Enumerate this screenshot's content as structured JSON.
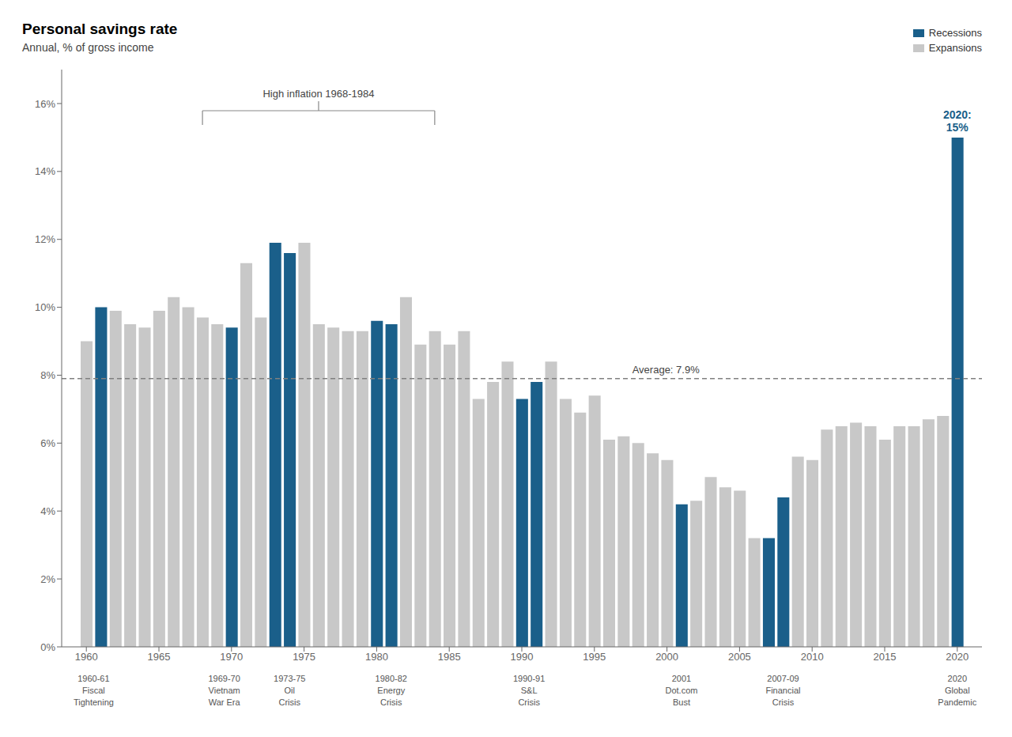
{
  "chart_data": {
    "type": "bar",
    "title": "Personal savings rate",
    "subtitle": "Annual, % of gross income",
    "x": [
      1960,
      1961,
      1962,
      1963,
      1964,
      1965,
      1966,
      1967,
      1968,
      1969,
      1970,
      1971,
      1972,
      1973,
      1974,
      1975,
      1976,
      1977,
      1978,
      1979,
      1980,
      1981,
      1982,
      1983,
      1984,
      1985,
      1986,
      1987,
      1988,
      1989,
      1990,
      1991,
      1992,
      1993,
      1994,
      1995,
      1996,
      1997,
      1998,
      1999,
      2000,
      2001,
      2002,
      2003,
      2004,
      2005,
      2006,
      2007,
      2008,
      2009,
      2010,
      2011,
      2012,
      2013,
      2014,
      2015,
      2016,
      2017,
      2018,
      2019,
      2020
    ],
    "series": [
      {
        "name": "Recessions",
        "color": "#1a5f8a",
        "values": [
          null,
          10.0,
          null,
          null,
          null,
          null,
          null,
          null,
          null,
          null,
          9.4,
          null,
          null,
          11.9,
          11.6,
          null,
          null,
          null,
          null,
          null,
          9.6,
          9.5,
          null,
          null,
          null,
          null,
          null,
          null,
          null,
          null,
          7.3,
          7.8,
          null,
          null,
          null,
          null,
          null,
          null,
          null,
          null,
          null,
          4.2,
          null,
          null,
          null,
          null,
          null,
          3.2,
          4.4,
          null,
          null,
          null,
          null,
          null,
          null,
          null,
          null,
          null,
          null,
          null,
          15.0
        ]
      },
      {
        "name": "Expansions",
        "color": "#c8c8c8",
        "values": [
          9.0,
          null,
          9.9,
          9.5,
          9.4,
          9.9,
          10.3,
          10.0,
          9.7,
          9.5,
          null,
          11.3,
          9.7,
          null,
          null,
          11.9,
          9.5,
          9.4,
          9.3,
          9.3,
          null,
          null,
          10.3,
          8.9,
          9.3,
          8.9,
          9.3,
          7.3,
          7.8,
          8.4,
          null,
          null,
          8.4,
          7.3,
          6.9,
          7.4,
          6.1,
          6.2,
          6.0,
          5.7,
          5.5,
          null,
          4.3,
          5.0,
          4.7,
          4.6,
          3.2,
          null,
          null,
          5.6,
          5.5,
          6.4,
          6.5,
          6.6,
          6.5,
          6.1,
          6.5,
          6.5,
          6.7,
          6.8,
          null
        ]
      }
    ],
    "average": 7.9,
    "average_label": "Average: 7.9%",
    "annotations": [
      {
        "x": 2020,
        "text": "2020:\n15%"
      }
    ],
    "bracket": {
      "x_start": 1968,
      "x_end": 1984,
      "label": "High inflation 1968-1984"
    },
    "recession_labels": [
      {
        "x": 1960.5,
        "lines": [
          "1960-61",
          "Fiscal",
          "Tightening"
        ]
      },
      {
        "x": 1969.5,
        "lines": [
          "1969-70",
          "Vietnam",
          "War Era"
        ]
      },
      {
        "x": 1974.0,
        "lines": [
          "1973-75",
          "Oil",
          "Crisis"
        ]
      },
      {
        "x": 1981.0,
        "lines": [
          "1980-82",
          "Energy",
          "Crisis"
        ]
      },
      {
        "x": 1990.5,
        "lines": [
          "1990-91",
          "S&L",
          "Crisis"
        ]
      },
      {
        "x": 2001.0,
        "lines": [
          "2001",
          "Dot.com",
          "Bust"
        ]
      },
      {
        "x": 2008.0,
        "lines": [
          "2007-09",
          "Financial",
          "Crisis"
        ]
      },
      {
        "x": 2020.0,
        "lines": [
          "2020",
          "Global",
          "Pandemic"
        ]
      }
    ],
    "xlim": [
      1958.3,
      2021.7
    ],
    "xticks": [
      1960,
      1965,
      1970,
      1975,
      1980,
      1985,
      1990,
      1995,
      2000,
      2005,
      2010,
      2015,
      2020
    ],
    "ylim": [
      0,
      17
    ],
    "yticks": [
      {
        "value": 0,
        "label": "0%"
      },
      {
        "value": 2,
        "label": "2%"
      },
      {
        "value": 4,
        "label": "4%"
      },
      {
        "value": 6,
        "label": "6%"
      },
      {
        "value": 8,
        "label": "8%"
      },
      {
        "value": 10,
        "label": "10%"
      },
      {
        "value": 12,
        "label": "12%"
      },
      {
        "value": 14,
        "label": "14%"
      },
      {
        "value": 16,
        "label": "16%"
      }
    ],
    "grid": false,
    "legend": "upper right"
  }
}
